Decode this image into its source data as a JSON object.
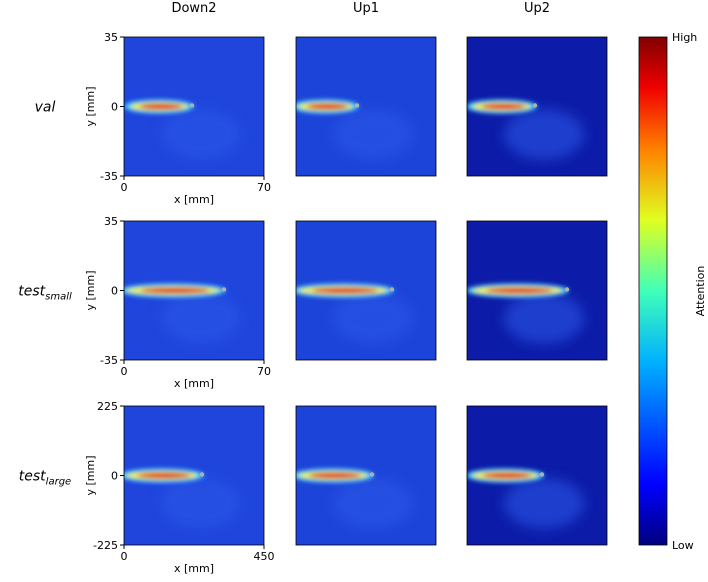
{
  "figure": {
    "columns": [
      "Down2",
      "Up1",
      "Up2"
    ],
    "rows": [
      {
        "label": "val",
        "xlim": [
          0,
          70
        ],
        "ylim": [
          -35,
          35
        ],
        "xticks": [
          0,
          70
        ],
        "yticks": [
          -35,
          0,
          35
        ],
        "xlabel": "x [mm]",
        "ylabel": "y [mm]"
      },
      {
        "label": "test",
        "subscript": "small",
        "xlim": [
          0,
          70
        ],
        "ylim": [
          -35,
          35
        ],
        "xticks": [
          0,
          70
        ],
        "yticks": [
          -35,
          0,
          35
        ],
        "xlabel": "x [mm]",
        "ylabel": "y [mm]"
      },
      {
        "label": "test",
        "subscript": "large",
        "xlim": [
          0,
          450
        ],
        "ylim": [
          -225,
          225
        ],
        "xticks": [
          0,
          450
        ],
        "yticks": [
          -225,
          0,
          225
        ],
        "xlabel": "x [mm]",
        "ylabel": "y [mm]"
      }
    ],
    "colorbar": {
      "label": "Attention",
      "high": "High",
      "low": "Low"
    }
  }
}
